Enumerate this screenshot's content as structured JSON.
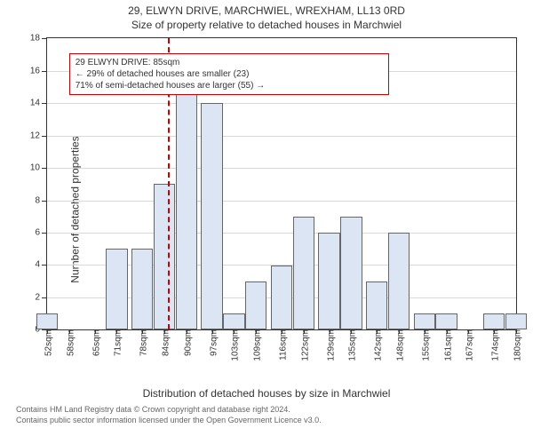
{
  "titles": {
    "line1": "29, ELWYN DRIVE, MARCHWIEL, WREXHAM, LL13 0RD",
    "line2": "Size of property relative to detached houses in Marchwiel"
  },
  "chart": {
    "type": "bar",
    "ylabel": "Number of detached properties",
    "xlabel": "Distribution of detached houses by size in Marchwiel",
    "ylim": [
      0,
      18
    ],
    "ytick_step": 2,
    "plot_border_color": "#333333",
    "grid_color": "#d9d9d9",
    "bar_fill": "#dbe5f4",
    "bar_border": "#666666",
    "background_color": "#ffffff",
    "text_color": "#333333",
    "marker_color": "#cc0000",
    "marker_x": 85,
    "xticks": [
      52,
      58,
      65,
      71,
      78,
      84,
      90,
      97,
      103,
      109,
      116,
      122,
      129,
      135,
      142,
      148,
      155,
      161,
      167,
      174,
      180
    ],
    "xtick_unit": "sqm",
    "values": [
      1,
      0,
      0,
      5,
      5,
      9,
      15,
      14,
      1,
      3,
      4,
      7,
      6,
      7,
      3,
      6,
      1,
      1,
      0,
      1,
      1
    ],
    "bar_align": "center",
    "label_fontsize": 12,
    "tick_fontsize": 10
  },
  "annotation": {
    "title": "29 ELWYN DRIVE: 85sqm",
    "line2": "← 29% of detached houses are smaller (23)",
    "line3": "71% of semi-detached houses are larger (55) →"
  },
  "footnote": {
    "line1": "Contains HM Land Registry data © Crown copyright and database right 2024.",
    "line2": "Contains public sector information licensed under the Open Government Licence v3.0."
  }
}
